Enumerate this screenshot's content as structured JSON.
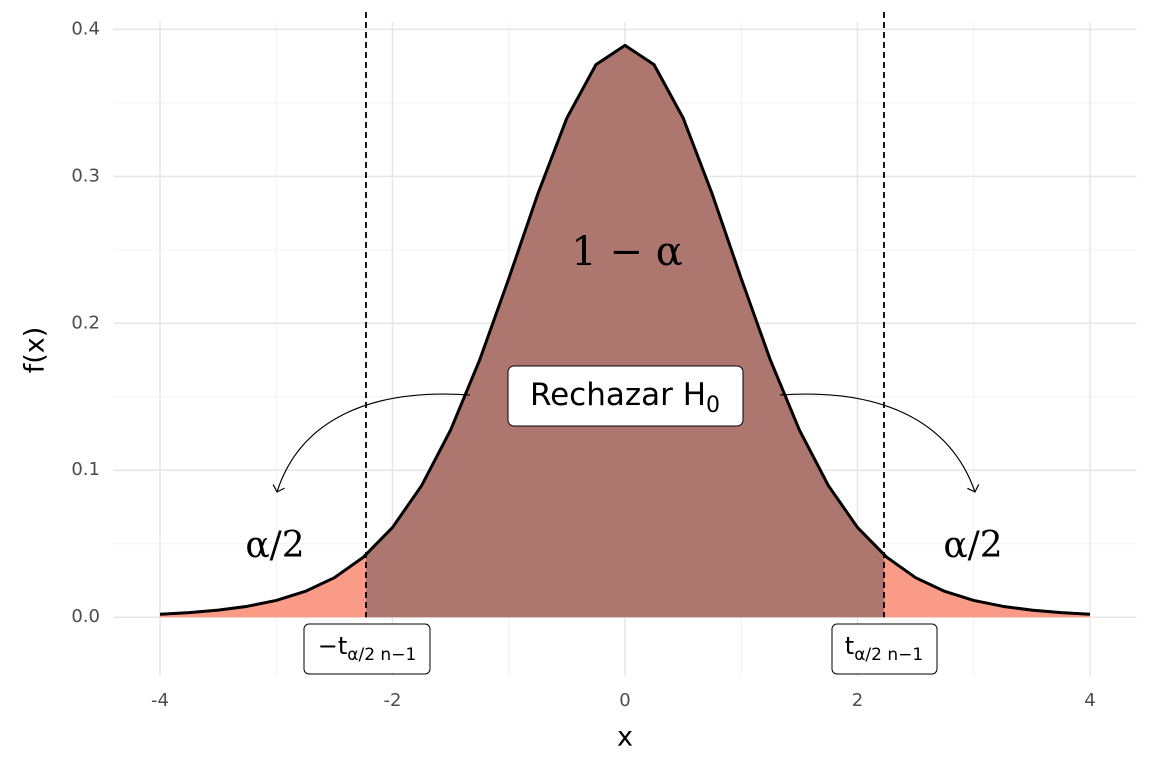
{
  "chart_data": {
    "type": "area",
    "x": [
      -4,
      -3.75,
      -3.5,
      -3.25,
      -3,
      -2.75,
      -2.5,
      -2.25,
      -2,
      -1.75,
      -1.5,
      -1.25,
      -1,
      -0.75,
      -0.5,
      -0.25,
      0,
      0.25,
      0.5,
      0.75,
      1,
      1.25,
      1.5,
      1.75,
      2,
      2.25,
      2.5,
      2.75,
      3,
      3.25,
      3.5,
      3.75,
      4
    ],
    "values": [
      0.002,
      0.0031,
      0.0048,
      0.0074,
      0.0114,
      0.0176,
      0.0269,
      0.0409,
      0.0611,
      0.0895,
      0.1274,
      0.1751,
      0.2304,
      0.288,
      0.3397,
      0.376,
      0.3891,
      0.376,
      0.3397,
      0.288,
      0.2304,
      0.1751,
      0.1274,
      0.0895,
      0.0611,
      0.0409,
      0.0269,
      0.0176,
      0.0114,
      0.0074,
      0.0048,
      0.0031,
      0.002
    ],
    "critical_values": [
      -2.228,
      2.228
    ],
    "line_color": "#000000",
    "center_color": "#ad766e",
    "tail_color": "#f99b87",
    "x_label": "x",
    "y_label": "f(x)",
    "xlim": [
      -4.4,
      4.4
    ],
    "ylim": [
      -0.04,
      0.405
    ],
    "xticks": [
      -4,
      -2,
      0,
      2,
      4
    ],
    "yticks": [
      {
        "value": 0,
        "label": "0.0"
      },
      0.1,
      0.2,
      0.3,
      0.4
    ],
    "x_minor_grid": [
      -3,
      -1,
      1,
      3
    ],
    "y_minor_grid": [
      0.05,
      0.15,
      0.25,
      0.35
    ],
    "grid": true,
    "center_label": "1 − α",
    "tail_labels": [
      "α/2",
      "α/2"
    ],
    "rejection_label": {
      "text": "Rechazar H",
      "sub": "0"
    },
    "critical_labels": [
      {
        "text": "−t",
        "sub": "α/2 n−1"
      },
      {
        "text": "t",
        "sub": "α/2 n−1"
      }
    ]
  }
}
